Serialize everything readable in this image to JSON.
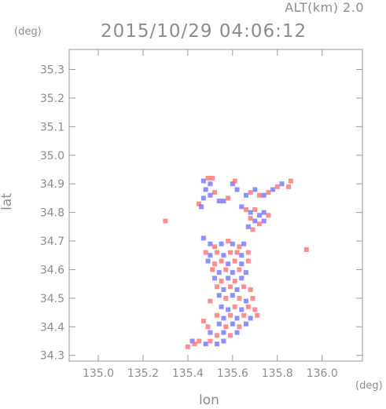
{
  "header": {
    "alt_label": "ALT(km) 2.0",
    "time_label": "2015/10/29 04:06:12",
    "y_unit": "(deg)",
    "x_unit": "(deg)"
  },
  "chart_data": {
    "type": "heatmap",
    "title": "2015/10/29 04:06:12",
    "xlabel": "lon",
    "ylabel": "lat",
    "xlim": [
      134.87,
      136.18
    ],
    "ylim": [
      34.28,
      35.37
    ],
    "x_ticks": [
      135.0,
      135.2,
      135.4,
      135.6,
      135.8,
      136.0
    ],
    "x_tick_labels": [
      "135.0",
      "135.2",
      "135.4",
      "135.6",
      "135.8",
      "136.0"
    ],
    "y_ticks": [
      34.3,
      34.4,
      34.5,
      34.6,
      34.7,
      34.8,
      34.9,
      35.0,
      35.1,
      35.2,
      35.3
    ],
    "y_tick_labels": [
      "34.3",
      "34.4",
      "34.5",
      "34.6",
      "34.7",
      "34.8",
      "34.9",
      "35.0",
      "35.1",
      "35.2",
      "35.3"
    ],
    "grid": false,
    "colors": {
      "positive": "#ff6a6a",
      "negative": "#6a6aff",
      "frame": "#9a9a9a"
    },
    "cells": [
      [
        135.49,
        34.92,
        1
      ],
      [
        135.51,
        34.92,
        1
      ],
      [
        135.47,
        34.91,
        -1
      ],
      [
        135.5,
        34.9,
        -1
      ],
      [
        135.48,
        34.88,
        -1
      ],
      [
        135.52,
        34.87,
        1
      ],
      [
        135.5,
        34.86,
        -1
      ],
      [
        135.47,
        34.85,
        -1
      ],
      [
        135.45,
        34.83,
        1
      ],
      [
        135.46,
        34.82,
        -1
      ],
      [
        135.54,
        34.84,
        -1
      ],
      [
        135.56,
        34.84,
        -1
      ],
      [
        135.58,
        34.85,
        1
      ],
      [
        135.6,
        34.9,
        -1
      ],
      [
        135.61,
        34.91,
        1
      ],
      [
        135.62,
        34.88,
        -1
      ],
      [
        135.66,
        34.86,
        -1
      ],
      [
        135.68,
        34.87,
        1
      ],
      [
        135.7,
        34.88,
        -1
      ],
      [
        135.72,
        34.86,
        1
      ],
      [
        135.74,
        34.86,
        -1
      ],
      [
        135.76,
        34.87,
        1
      ],
      [
        135.78,
        34.88,
        -1
      ],
      [
        135.8,
        34.89,
        1
      ],
      [
        135.82,
        34.9,
        -1
      ],
      [
        135.85,
        34.89,
        1
      ],
      [
        135.86,
        34.91,
        1
      ],
      [
        135.64,
        34.82,
        -1
      ],
      [
        135.66,
        34.81,
        1
      ],
      [
        135.68,
        34.8,
        -1
      ],
      [
        135.7,
        34.81,
        1
      ],
      [
        135.72,
        34.79,
        -1
      ],
      [
        135.74,
        34.8,
        -1
      ],
      [
        135.76,
        34.79,
        1
      ],
      [
        135.68,
        34.78,
        1
      ],
      [
        135.7,
        34.77,
        -1
      ],
      [
        135.72,
        34.76,
        1
      ],
      [
        135.74,
        34.77,
        -1
      ],
      [
        135.67,
        34.75,
        -1
      ],
      [
        135.69,
        34.74,
        1
      ],
      [
        135.3,
        34.77,
        1
      ],
      [
        135.47,
        34.71,
        -1
      ],
      [
        135.93,
        34.67,
        1
      ],
      [
        135.5,
        34.69,
        -1
      ],
      [
        135.52,
        34.68,
        1
      ],
      [
        135.55,
        34.69,
        -1
      ],
      [
        135.58,
        34.7,
        1
      ],
      [
        135.6,
        34.69,
        -1
      ],
      [
        135.63,
        34.68,
        1
      ],
      [
        135.65,
        34.69,
        -1
      ],
      [
        135.48,
        34.66,
        1
      ],
      [
        135.5,
        34.65,
        -1
      ],
      [
        135.53,
        34.66,
        1
      ],
      [
        135.56,
        34.65,
        -1
      ],
      [
        135.59,
        34.66,
        1
      ],
      [
        135.62,
        34.66,
        1
      ],
      [
        135.64,
        34.65,
        -1
      ],
      [
        135.67,
        34.66,
        1
      ],
      [
        135.49,
        34.63,
        -1
      ],
      [
        135.52,
        34.62,
        1
      ],
      [
        135.55,
        34.63,
        1
      ],
      [
        135.58,
        34.62,
        -1
      ],
      [
        135.61,
        34.63,
        1
      ],
      [
        135.64,
        34.62,
        -1
      ],
      [
        135.67,
        34.63,
        1
      ],
      [
        135.51,
        34.6,
        1
      ],
      [
        135.54,
        34.59,
        -1
      ],
      [
        135.57,
        34.6,
        1
      ],
      [
        135.6,
        34.59,
        -1
      ],
      [
        135.63,
        34.6,
        1
      ],
      [
        135.66,
        34.59,
        -1
      ],
      [
        135.52,
        34.57,
        -1
      ],
      [
        135.55,
        34.56,
        1
      ],
      [
        135.58,
        34.57,
        -1
      ],
      [
        135.61,
        34.56,
        1
      ],
      [
        135.64,
        34.57,
        -1
      ],
      [
        135.53,
        34.54,
        1
      ],
      [
        135.56,
        34.53,
        -1
      ],
      [
        135.59,
        34.54,
        1
      ],
      [
        135.62,
        34.53,
        -1
      ],
      [
        135.65,
        34.54,
        1
      ],
      [
        135.68,
        34.53,
        1
      ],
      [
        135.54,
        34.51,
        -1
      ],
      [
        135.57,
        34.5,
        1
      ],
      [
        135.6,
        34.51,
        -1
      ],
      [
        135.63,
        34.5,
        1
      ],
      [
        135.66,
        34.49,
        -1
      ],
      [
        135.69,
        34.5,
        1
      ],
      [
        135.5,
        34.49,
        1
      ],
      [
        135.55,
        34.47,
        -1
      ],
      [
        135.58,
        34.46,
        -1
      ],
      [
        135.61,
        34.47,
        1
      ],
      [
        135.64,
        34.46,
        -1
      ],
      [
        135.67,
        34.47,
        1
      ],
      [
        135.7,
        34.46,
        1
      ],
      [
        135.53,
        34.44,
        1
      ],
      [
        135.56,
        34.43,
        -1
      ],
      [
        135.59,
        34.44,
        1
      ],
      [
        135.62,
        34.43,
        -1
      ],
      [
        135.65,
        34.44,
        1
      ],
      [
        135.68,
        34.43,
        -1
      ],
      [
        135.71,
        34.44,
        1
      ],
      [
        135.54,
        34.41,
        -1
      ],
      [
        135.57,
        34.4,
        1
      ],
      [
        135.6,
        34.41,
        -1
      ],
      [
        135.63,
        34.4,
        1
      ],
      [
        135.66,
        34.41,
        -1
      ],
      [
        135.49,
        34.4,
        1
      ],
      [
        135.47,
        34.42,
        1
      ],
      [
        135.5,
        34.38,
        -1
      ],
      [
        135.53,
        34.37,
        1
      ],
      [
        135.56,
        34.38,
        -1
      ],
      [
        135.59,
        34.37,
        1
      ],
      [
        135.62,
        34.38,
        -1
      ],
      [
        135.42,
        34.35,
        -1
      ],
      [
        135.45,
        34.35,
        1
      ],
      [
        135.48,
        34.34,
        -1
      ],
      [
        135.5,
        34.35,
        1
      ],
      [
        135.53,
        34.34,
        -1
      ],
      [
        135.4,
        34.33,
        1
      ],
      [
        135.43,
        34.34,
        1
      ],
      [
        135.56,
        34.35,
        -1
      ]
    ]
  }
}
